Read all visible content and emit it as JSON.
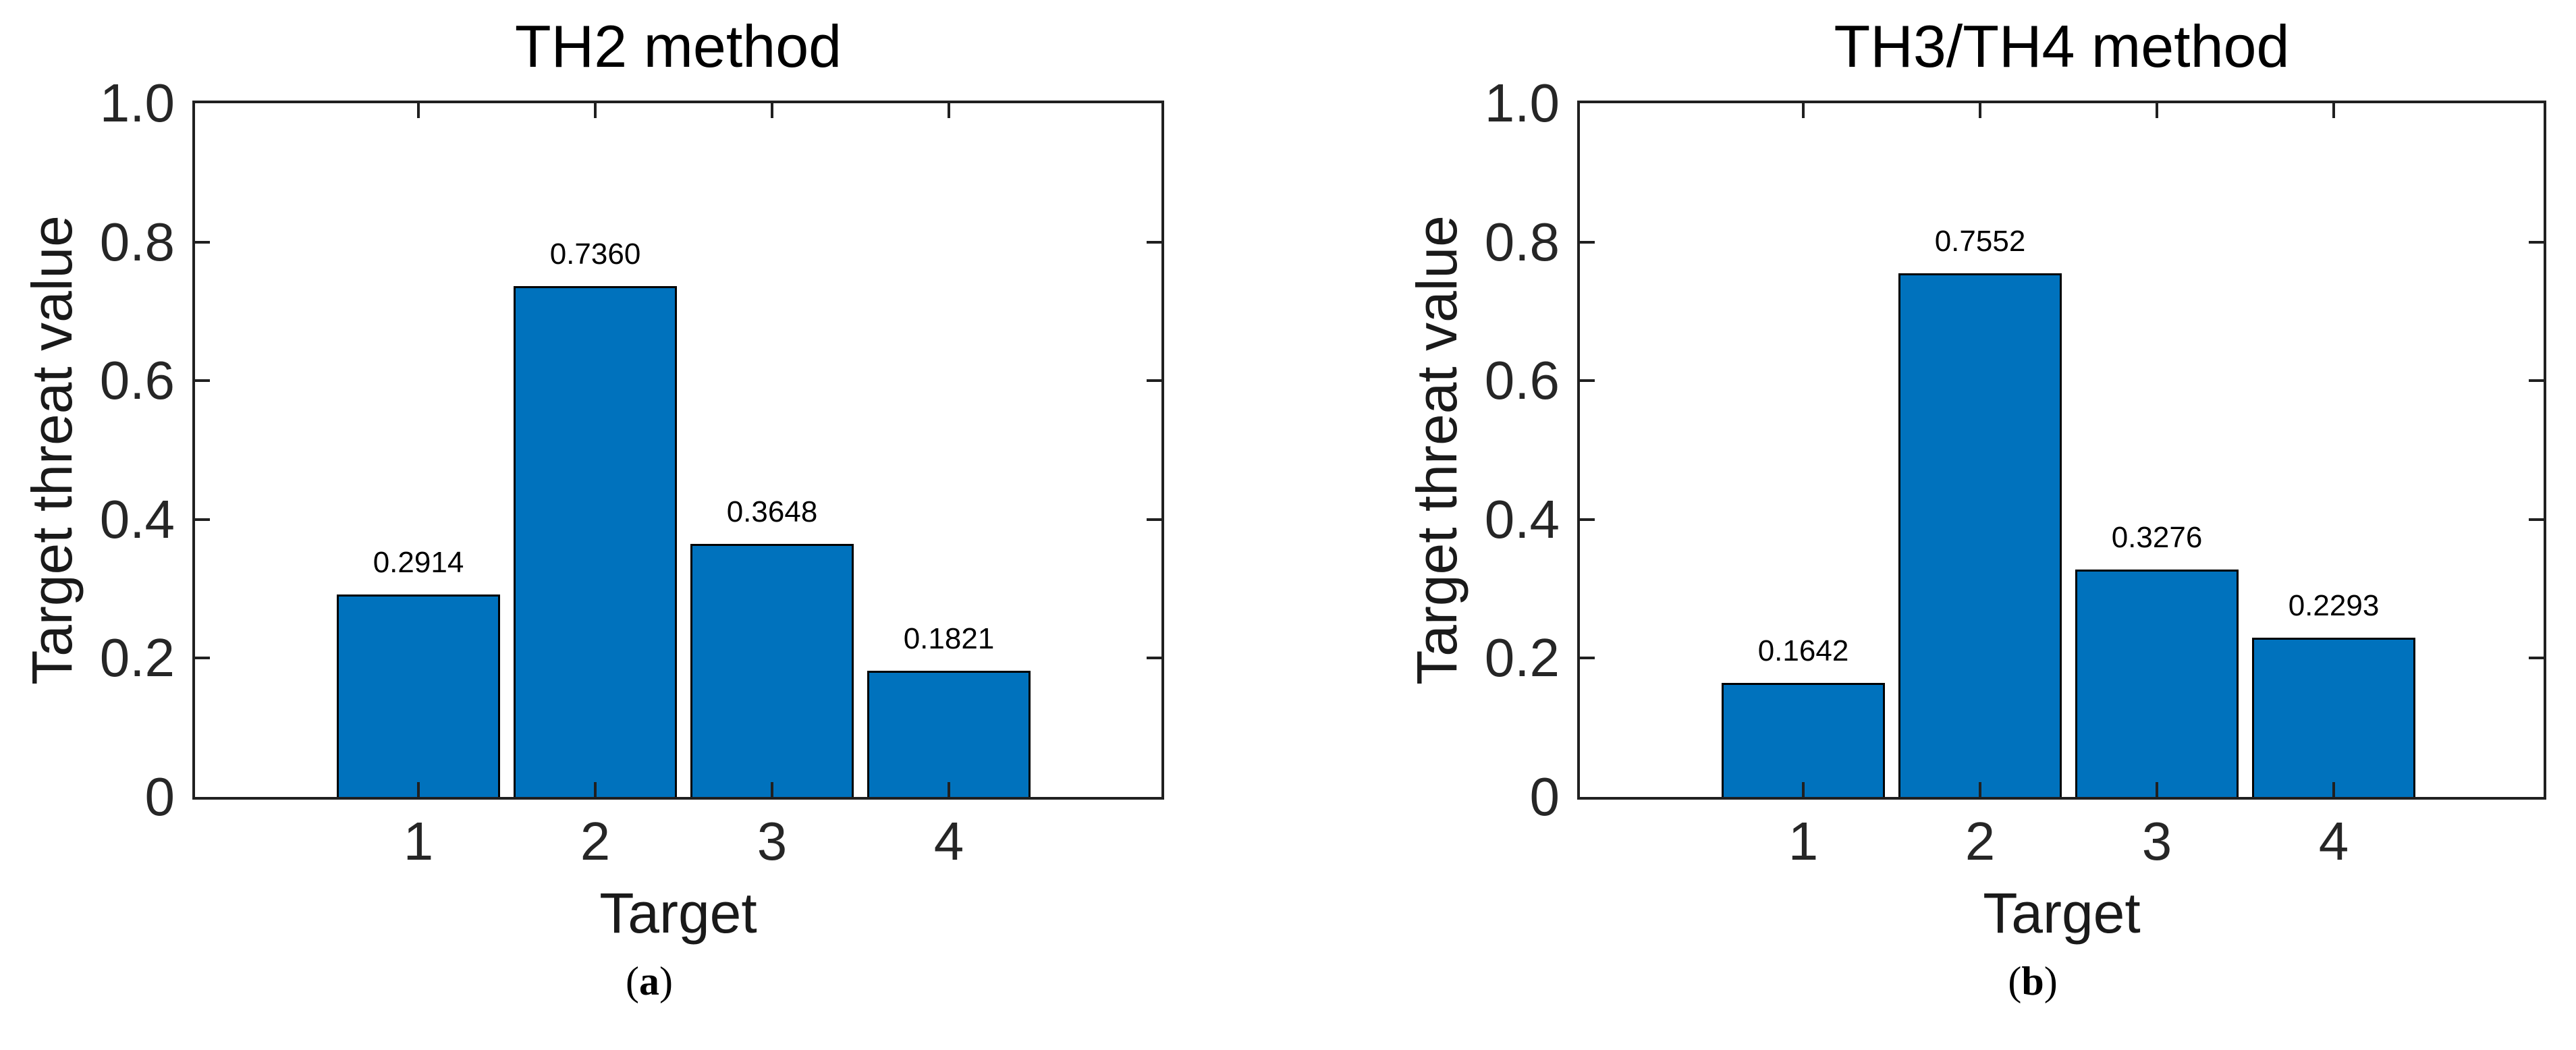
{
  "figure": {
    "background": "#ffffff",
    "bar_fill": "#0072BD",
    "bar_edge": "#000000",
    "axis_color": "#202020"
  },
  "chart_data": [
    {
      "type": "bar",
      "title": "TH2 method",
      "xlabel": "Target",
      "ylabel": "Target threat value",
      "categories": [
        "1",
        "2",
        "3",
        "4"
      ],
      "values": [
        0.2914,
        0.736,
        0.3648,
        0.1821
      ],
      "bar_value_labels": [
        "0.2914",
        "0.7360",
        "0.3648",
        "0.1821"
      ],
      "ylim": [
        0,
        1.0
      ],
      "yticks": [
        0,
        0.2,
        0.4,
        0.6,
        0.8,
        1.0
      ],
      "ytick_labels": [
        "0",
        "0.2",
        "0.4",
        "0.6",
        "0.8",
        "1.0"
      ],
      "grid": false,
      "legend_position": "none",
      "panel_label": "(a)"
    },
    {
      "type": "bar",
      "title": "TH3/TH4 method",
      "xlabel": "Target",
      "ylabel": "Target threat value",
      "categories": [
        "1",
        "2",
        "3",
        "4"
      ],
      "values": [
        0.1642,
        0.7552,
        0.3276,
        0.2293
      ],
      "bar_value_labels": [
        "0.1642",
        "0.7552",
        "0.3276",
        "0.2293"
      ],
      "ylim": [
        0,
        1.0
      ],
      "yticks": [
        0,
        0.2,
        0.4,
        0.6,
        0.8,
        1.0
      ],
      "ytick_labels": [
        "0",
        "0.2",
        "0.4",
        "0.6",
        "0.8",
        "1.0"
      ],
      "grid": false,
      "legend_position": "none",
      "panel_label": "(b)"
    }
  ]
}
